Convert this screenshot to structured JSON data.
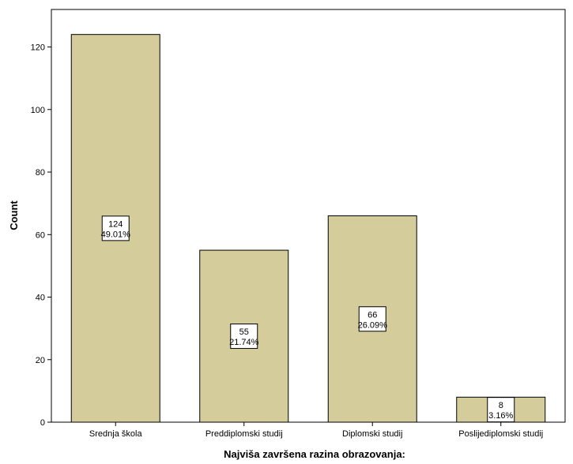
{
  "chart_data": {
    "type": "bar",
    "title": "",
    "xlabel": "Najviša završena razina obrazovanja:",
    "ylabel": "Count",
    "categories": [
      "Srednja škola",
      "Preddiplomski studij",
      "Diplomski studij",
      "Poslijediplomski studij"
    ],
    "values": [
      124,
      55,
      66,
      8
    ],
    "data_labels": [
      {
        "count": "124",
        "percent": "49.01%"
      },
      {
        "count": "55",
        "percent": "21.74%"
      },
      {
        "count": "66",
        "percent": "26.09%"
      },
      {
        "count": "8",
        "percent": "3.16%"
      }
    ],
    "ylim": [
      0,
      132
    ],
    "yticks": [
      0,
      20,
      40,
      60,
      80,
      100,
      120
    ],
    "grid": false,
    "legend": "none",
    "bar_color": "#d4cd9b",
    "bar_edge_color": "#000000"
  }
}
